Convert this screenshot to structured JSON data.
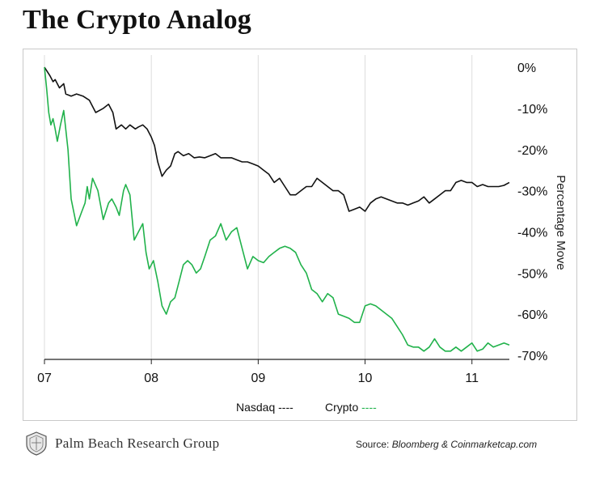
{
  "title": "The Crypto Analog",
  "footer": {
    "brand": "Palm Beach Research Group",
    "source_label": "Source:",
    "source_value": "Bloomberg & Coinmarketcap.com"
  },
  "colors": {
    "nasdaq": "#111111",
    "crypto": "#21b24b",
    "frame": "#c9c9c9"
  },
  "chart_data": {
    "type": "line",
    "title": "The Crypto Analog",
    "ylabel": "Percentage Move",
    "xlabel": "",
    "xticks": [
      "07",
      "08",
      "09",
      "10",
      "11"
    ],
    "xlim": [
      2007.0,
      2011.35
    ],
    "ylim": [
      -71,
      1
    ],
    "yticks": [
      0,
      -10,
      -20,
      -30,
      -40,
      -50,
      -60,
      -70
    ],
    "ytick_labels": [
      "0%",
      "-10%",
      "-20%",
      "-30%",
      "-40%",
      "-50%",
      "-60%",
      "-70%"
    ],
    "grid": "vertical",
    "legend": "bottom-center",
    "series": [
      {
        "name": "Nasdaq",
        "legend_label": "Nasdaq ----",
        "color": "#111111",
        "x": [
          2007.0,
          2007.05,
          2007.08,
          2007.1,
          2007.14,
          2007.18,
          2007.2,
          2007.25,
          2007.3,
          2007.36,
          2007.42,
          2007.48,
          2007.55,
          2007.6,
          2007.64,
          2007.67,
          2007.72,
          2007.76,
          2007.8,
          2007.85,
          2007.88,
          2007.92,
          2007.96,
          2008.0,
          2008.03,
          2008.06,
          2008.1,
          2008.14,
          2008.18,
          2008.22,
          2008.25,
          2008.3,
          2008.35,
          2008.4,
          2008.45,
          2008.5,
          2008.55,
          2008.6,
          2008.65,
          2008.7,
          2008.75,
          2008.8,
          2008.85,
          2008.9,
          2008.95,
          2009.0,
          2009.05,
          2009.1,
          2009.15,
          2009.2,
          2009.25,
          2009.3,
          2009.35,
          2009.4,
          2009.45,
          2009.5,
          2009.55,
          2009.6,
          2009.65,
          2009.7,
          2009.75,
          2009.8,
          2009.85,
          2009.9,
          2009.95,
          2010.0,
          2010.05,
          2010.1,
          2010.15,
          2010.2,
          2010.25,
          2010.3,
          2010.35,
          2010.4,
          2010.45,
          2010.5,
          2010.55,
          2010.6,
          2010.65,
          2010.7,
          2010.75,
          2010.8,
          2010.85,
          2010.9,
          2010.95,
          2011.0,
          2011.05,
          2011.1,
          2011.15,
          2011.2,
          2011.25,
          2011.3,
          2011.35
        ],
        "y": [
          0,
          -2,
          -3.5,
          -3,
          -5,
          -4,
          -6.5,
          -7,
          -6.5,
          -7,
          -8,
          -11,
          -10,
          -9,
          -11,
          -15,
          -14,
          -15,
          -14,
          -15,
          -14.5,
          -14,
          -15,
          -17,
          -19,
          -23,
          -26.5,
          -25,
          -24,
          -21,
          -20.5,
          -21.5,
          -21,
          -22,
          -21.8,
          -22,
          -21.5,
          -21,
          -22,
          -22,
          -22,
          -22.5,
          -23,
          -23,
          -23.5,
          -24,
          -25,
          -26,
          -28,
          -27,
          -29,
          -31,
          -31,
          -30,
          -29,
          -29,
          -27,
          -28,
          -29,
          -30,
          -30,
          -31,
          -35,
          -34.5,
          -34,
          -35,
          -33,
          -32,
          -31.5,
          -32,
          -32.5,
          -33,
          -33,
          -33.5,
          -33,
          -32.5,
          -31.5,
          -33,
          -32,
          -31,
          -30,
          -30,
          -28,
          -27.5,
          -28,
          -28,
          -29,
          -28.5,
          -29,
          -29,
          -29,
          -28.7,
          -28
        ]
      },
      {
        "name": "Crypto",
        "legend_label": "Crypto ----",
        "color": "#21b24b",
        "x": [
          2007.0,
          2007.02,
          2007.04,
          2007.06,
          2007.08,
          2007.1,
          2007.12,
          2007.15,
          2007.18,
          2007.22,
          2007.25,
          2007.3,
          2007.35,
          2007.38,
          2007.4,
          2007.42,
          2007.45,
          2007.5,
          2007.55,
          2007.6,
          2007.63,
          2007.67,
          2007.7,
          2007.74,
          2007.76,
          2007.8,
          2007.84,
          2007.88,
          2007.92,
          2007.95,
          2007.98,
          2008.02,
          2008.06,
          2008.1,
          2008.14,
          2008.18,
          2008.22,
          2008.26,
          2008.3,
          2008.34,
          2008.38,
          2008.42,
          2008.46,
          2008.5,
          2008.55,
          2008.6,
          2008.65,
          2008.7,
          2008.75,
          2008.8,
          2008.85,
          2008.9,
          2008.95,
          2009.0,
          2009.05,
          2009.1,
          2009.15,
          2009.2,
          2009.25,
          2009.3,
          2009.35,
          2009.4,
          2009.45,
          2009.5,
          2009.55,
          2009.6,
          2009.65,
          2009.7,
          2009.75,
          2009.8,
          2009.85,
          2009.9,
          2009.95,
          2010.0,
          2010.05,
          2010.1,
          2010.15,
          2010.2,
          2010.25,
          2010.3,
          2010.35,
          2010.4,
          2010.45,
          2010.5,
          2010.55,
          2010.6,
          2010.65,
          2010.7,
          2010.75,
          2010.8,
          2010.85,
          2010.9,
          2010.95,
          2011.0,
          2011.05,
          2011.1,
          2011.15,
          2011.2,
          2011.25,
          2011.3,
          2011.35
        ],
        "y": [
          0,
          -5,
          -11,
          -14,
          -12.5,
          -15,
          -18,
          -14,
          -10.5,
          -20,
          -32,
          -38.5,
          -35,
          -33,
          -29,
          -32,
          -27,
          -30,
          -37,
          -33,
          -32,
          -34,
          -36,
          -30,
          -28.5,
          -31,
          -42,
          -40,
          -38,
          -45,
          -49,
          -47,
          -52,
          -58,
          -60,
          -57,
          -56,
          -52,
          -48,
          -47,
          -48,
          -50,
          -49,
          -46,
          -42,
          -41,
          -38,
          -42,
          -40,
          -39,
          -44,
          -49,
          -46,
          -47,
          -47.5,
          -46,
          -45,
          -44,
          -43.5,
          -44,
          -45,
          -48,
          -50,
          -54,
          -55,
          -57,
          -55,
          -56,
          -60,
          -60.5,
          -61,
          -62,
          -62,
          -58,
          -57.5,
          -58,
          -59,
          -60,
          -61,
          -63,
          -65,
          -67.5,
          -68,
          -68,
          -69,
          -68,
          -66,
          -68,
          -69,
          -69,
          -68,
          -69,
          -68,
          -67,
          -69,
          -68.5,
          -67,
          -68,
          -67.5,
          -67,
          -67.5
        ]
      }
    ]
  }
}
